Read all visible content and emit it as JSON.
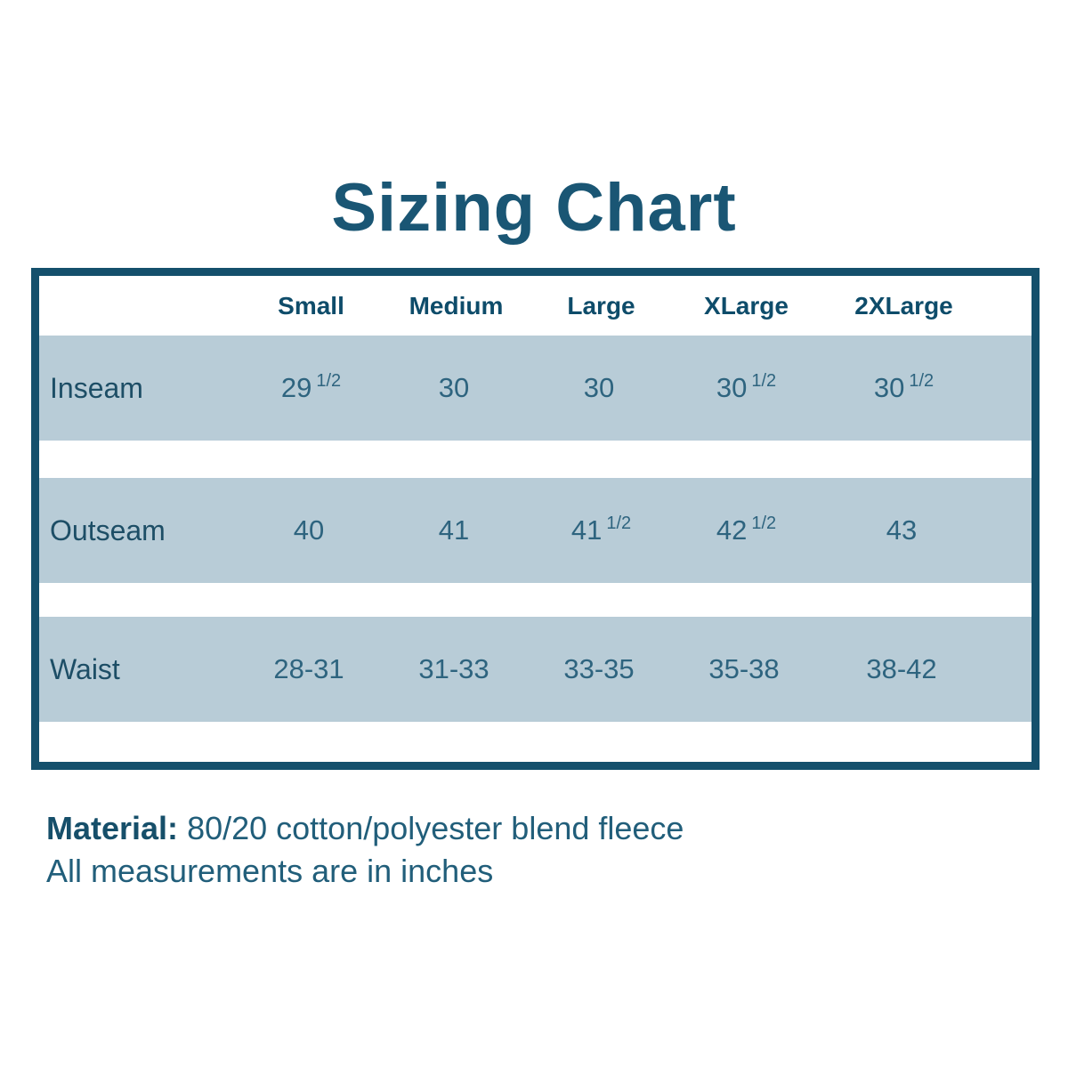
{
  "title": "Sizing Chart",
  "table": {
    "columns": [
      "Small",
      "Medium",
      "Large",
      "XLarge",
      "2XLarge"
    ],
    "rows": [
      {
        "label": "Inseam",
        "cells": [
          {
            "v": "29",
            "sup": "1/2"
          },
          {
            "v": "30"
          },
          {
            "v": "30"
          },
          {
            "v": "30",
            "sup": "1/2"
          },
          {
            "v": "30",
            "sup": "1/2"
          }
        ]
      },
      {
        "label": "Outseam",
        "cells": [
          {
            "v": "40"
          },
          {
            "v": "41"
          },
          {
            "v": "41",
            "sup": "1/2"
          },
          {
            "v": "42",
            "sup": "1/2"
          },
          {
            "v": "43"
          }
        ]
      },
      {
        "label": "Waist",
        "cells": [
          {
            "v": "28-31"
          },
          {
            "v": "31-33"
          },
          {
            "v": "33-35"
          },
          {
            "v": "35-38"
          },
          {
            "v": "38-42"
          }
        ]
      }
    ]
  },
  "footer": {
    "material_label": "Material:",
    "material_value": "80/20 cotton/polyester blend fleece",
    "note": "All measurements are in inches"
  },
  "colors": {
    "accent_border": "#14506c",
    "title_text": "#1a5674",
    "header_text": "#0e4c6a",
    "band_background": "#b8ccd7",
    "row_label_text": "#1d4e66",
    "value_text": "#2e647f"
  },
  "chart_data": {
    "type": "table",
    "title": "Sizing Chart",
    "columns": [
      "Small",
      "Medium",
      "Large",
      "XLarge",
      "2XLarge"
    ],
    "rows": [
      {
        "label": "Inseam",
        "values": [
          "29 1/2",
          "30",
          "30",
          "30 1/2",
          "30 1/2"
        ]
      },
      {
        "label": "Outseam",
        "values": [
          "40",
          "41",
          "41 1/2",
          "42 1/2",
          "43"
        ]
      },
      {
        "label": "Waist",
        "values": [
          "28-31",
          "31-33",
          "33-35",
          "35-38",
          "38-42"
        ]
      }
    ],
    "notes": [
      "Material: 80/20 cotton/polyester blend fleece",
      "All measurements are in inches"
    ]
  }
}
